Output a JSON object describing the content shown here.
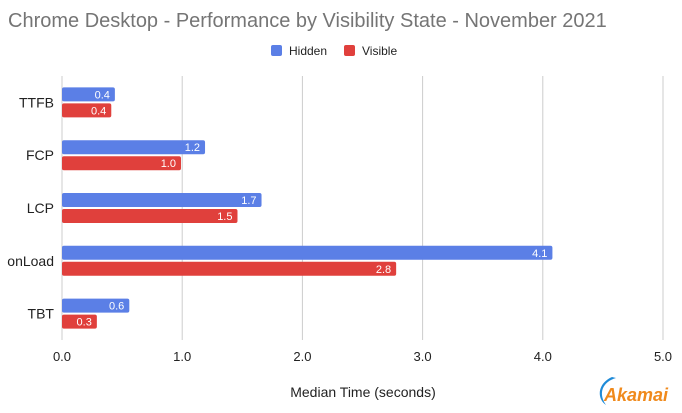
{
  "chart_data": {
    "type": "bar",
    "orientation": "horizontal",
    "title": "Chrome Desktop - Performance by Visibility State - November 2021",
    "xlabel": "Median Time (seconds)",
    "ylabel": "",
    "categories": [
      "TTFB",
      "FCP",
      "LCP",
      "onLoad",
      "TBT"
    ],
    "series": [
      {
        "name": "Hidden",
        "color": "#5b7fe6",
        "values": [
          0.44,
          1.19,
          1.66,
          4.08,
          0.56
        ]
      },
      {
        "name": "Visible",
        "color": "#e0403c",
        "values": [
          0.41,
          0.99,
          1.46,
          2.78,
          0.29
        ]
      }
    ],
    "data_labels": [
      [
        "0.4",
        "1.2",
        "1.7",
        "4.1",
        "0.6"
      ],
      [
        "0.4",
        "1.0",
        "1.5",
        "2.8",
        "0.3"
      ]
    ],
    "xlim": [
      0,
      5
    ],
    "xticks": [
      "0.0",
      "1.0",
      "2.0",
      "3.0",
      "4.0",
      "5.0"
    ],
    "grid": true,
    "legend_position": "top-center"
  },
  "logo": {
    "name": "akamai-logo",
    "text": "Akamai",
    "color": "#f08a1c",
    "swoosh_color": "#1f8bd8"
  }
}
